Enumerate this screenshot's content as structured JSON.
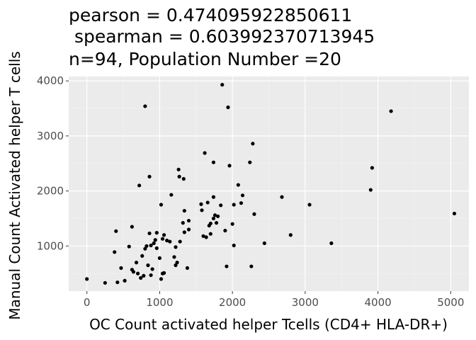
{
  "chart_data": {
    "type": "scatter",
    "title_lines": [
      "pearson = 0.474095922850611",
      " spearman = 0.603992370713945",
      "n=94, Population Number =20"
    ],
    "xlabel": "OC Count activated helper Tcells (CD4+ HLA-DR+)",
    "ylabel": "Manual Count Activated helper T cells",
    "xlim": [
      -250,
      5250
    ],
    "ylim": [
      180,
      4080
    ],
    "x_ticks": [
      0,
      1000,
      2000,
      3000,
      4000,
      5000
    ],
    "y_ticks": [
      1000,
      2000,
      3000,
      4000
    ],
    "grid": true,
    "background": "#ebebeb",
    "point_color": "#000000",
    "points": [
      [
        0,
        400
      ],
      [
        250,
        330
      ],
      [
        420,
        340
      ],
      [
        520,
        370
      ],
      [
        470,
        600
      ],
      [
        400,
        1270
      ],
      [
        380,
        890
      ],
      [
        580,
        990
      ],
      [
        620,
        1350
      ],
      [
        620,
        570
      ],
      [
        640,
        530
      ],
      [
        680,
        700
      ],
      [
        700,
        500
      ],
      [
        720,
        2100
      ],
      [
        740,
        420
      ],
      [
        760,
        820
      ],
      [
        780,
        460
      ],
      [
        800,
        3540
      ],
      [
        800,
        950
      ],
      [
        820,
        1000
      ],
      [
        840,
        650
      ],
      [
        860,
        1230
      ],
      [
        860,
        2260
      ],
      [
        880,
        1010
      ],
      [
        880,
        470
      ],
      [
        900,
        580
      ],
      [
        920,
        1050
      ],
      [
        940,
        1110
      ],
      [
        960,
        1240
      ],
      [
        960,
        960
      ],
      [
        1000,
        780
      ],
      [
        1020,
        400
      ],
      [
        1020,
        1750
      ],
      [
        1040,
        500
      ],
      [
        1040,
        1130
      ],
      [
        1060,
        1200
      ],
      [
        1060,
        510
      ],
      [
        1100,
        1100
      ],
      [
        1160,
        1930
      ],
      [
        1200,
        800
      ],
      [
        1220,
        980
      ],
      [
        1220,
        650
      ],
      [
        1240,
        700
      ],
      [
        1260,
        2390
      ],
      [
        1270,
        2260
      ],
      [
        1280,
        1080
      ],
      [
        1320,
        1420
      ],
      [
        1330,
        2220
      ],
      [
        1340,
        1640
      ],
      [
        1340,
        1250
      ],
      [
        1380,
        600
      ],
      [
        1400,
        1300
      ],
      [
        1400,
        1460
      ],
      [
        1570,
        1760
      ],
      [
        1580,
        1650
      ],
      [
        1600,
        1180
      ],
      [
        1620,
        2690
      ],
      [
        1640,
        1160
      ],
      [
        1660,
        1790
      ],
      [
        1680,
        1370
      ],
      [
        1700,
        1410
      ],
      [
        1700,
        1220
      ],
      [
        1740,
        1500
      ],
      [
        1740,
        1890
      ],
      [
        1740,
        2520
      ],
      [
        1760,
        1560
      ],
      [
        1780,
        1420
      ],
      [
        1800,
        1540
      ],
      [
        1840,
        1740
      ],
      [
        1860,
        3930
      ],
      [
        1900,
        1280
      ],
      [
        1920,
        630
      ],
      [
        1940,
        3520
      ],
      [
        1960,
        2460
      ],
      [
        2000,
        1400
      ],
      [
        2020,
        1010
      ],
      [
        2020,
        1750
      ],
      [
        2080,
        2110
      ],
      [
        2120,
        1780
      ],
      [
        2140,
        1920
      ],
      [
        2240,
        2520
      ],
      [
        2260,
        630
      ],
      [
        2280,
        2860
      ],
      [
        2300,
        1580
      ],
      [
        2440,
        1050
      ],
      [
        2680,
        1890
      ],
      [
        2800,
        1200
      ],
      [
        3060,
        1750
      ],
      [
        3360,
        1050
      ],
      [
        3900,
        2020
      ],
      [
        3920,
        2420
      ],
      [
        4180,
        3450
      ],
      [
        5050,
        1590
      ],
      [
        1140,
        1080
      ]
    ]
  }
}
